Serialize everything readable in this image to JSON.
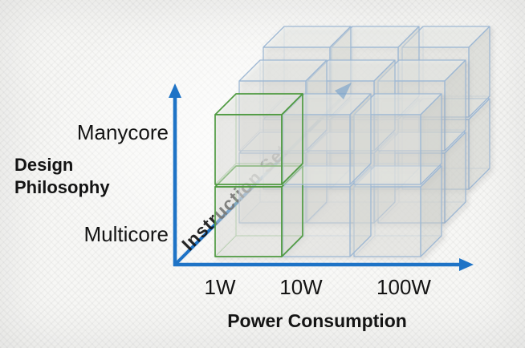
{
  "diagram": {
    "y_axis": {
      "title_lines": [
        "Design",
        "Philosophy"
      ],
      "ticks": [
        "Manycore",
        "Multicore"
      ]
    },
    "x_axis": {
      "title": "Power Consumption",
      "ticks": [
        "1W",
        "10W",
        "100W"
      ]
    },
    "z_axis": {
      "title": "Instruction Set"
    },
    "lattice": {
      "columns": 3,
      "rows": 2,
      "depth_layers": 3,
      "highlight": {
        "column_index": 0,
        "layer_index": 0
      }
    },
    "colors": {
      "axis_blue": "#1e73c6",
      "faint_arrow_blue": "#6f9cc9",
      "cube_edge_blue": "#9db7d3",
      "cube_edge_green": "#4f9a41",
      "cube_fill_front": "#e6e7e3",
      "cube_fill_top": "#f0f1ee",
      "cube_fill_side": "#d9dbd6",
      "text": "#141414"
    }
  }
}
